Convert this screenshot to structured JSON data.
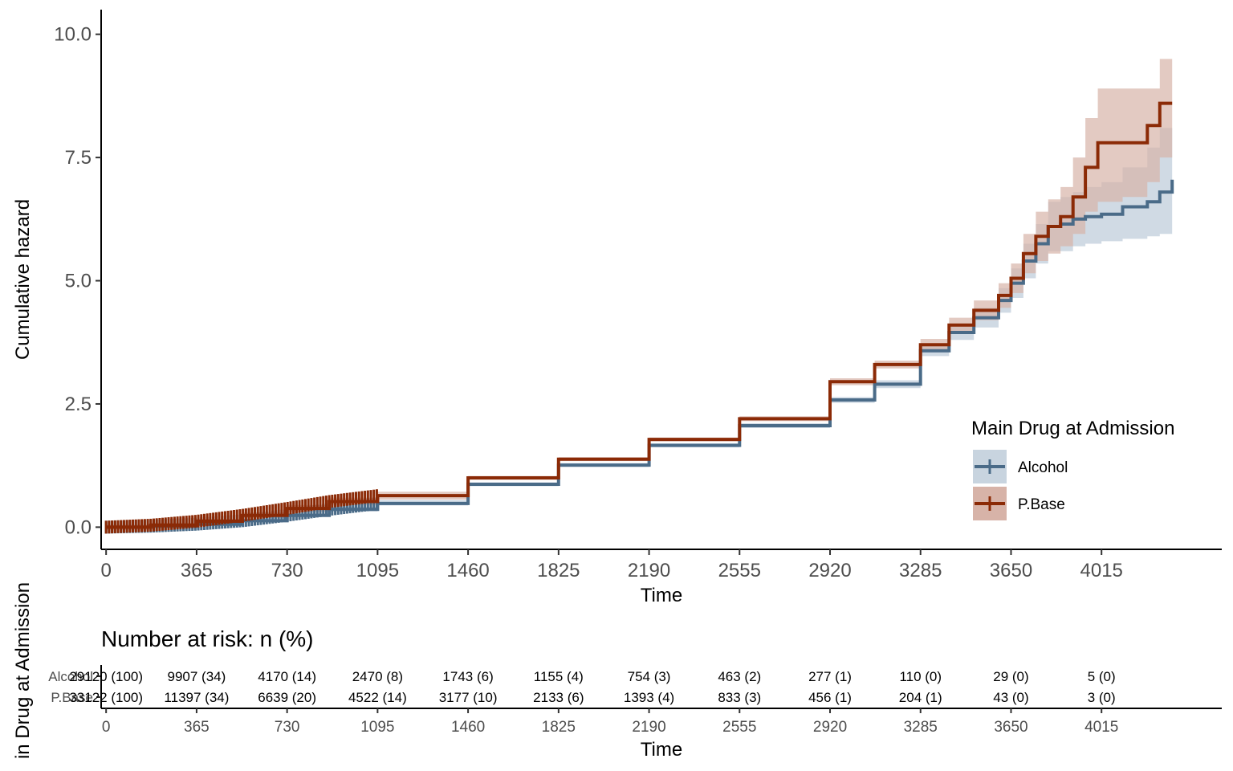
{
  "chart_data": [
    {
      "type": "line",
      "subtype": "step-cumulative-hazard-with-ci",
      "xlabel": "Time",
      "ylabel": "Cumulative hazard",
      "xlim": [
        -20,
        4500
      ],
      "ylim": [
        -0.45,
        10.5
      ],
      "x_ticks": [
        "0",
        "365",
        "730",
        "1095",
        "1460",
        "1825",
        "2190",
        "2555",
        "2920",
        "3285",
        "3650",
        "4015"
      ],
      "x_tick_values": [
        0,
        365,
        730,
        1095,
        1460,
        1825,
        2190,
        2555,
        2920,
        3285,
        3650,
        4015
      ],
      "y_ticks": [
        "0.0",
        "2.5",
        "5.0",
        "7.5",
        "10.0"
      ],
      "y_tick_values": [
        0,
        2.5,
        5,
        7.5,
        10
      ],
      "grid": false,
      "legend": {
        "title": "Main Drug at Admission",
        "position": "right",
        "entries": [
          "Alcohol",
          "P.Base"
        ]
      },
      "series": [
        {
          "name": "Alcohol",
          "color": "#4a6b88",
          "ci_color": "#c8d4df",
          "x": [
            0,
            180,
            365,
            550,
            730,
            900,
            1095,
            1460,
            1825,
            2190,
            2555,
            2920,
            3100,
            3285,
            3400,
            3500,
            3600,
            3650,
            3700,
            3750,
            3800,
            3850,
            3900,
            3950,
            4015,
            4100,
            4200,
            4250,
            4300
          ],
          "y": [
            0.0,
            0.02,
            0.06,
            0.13,
            0.24,
            0.36,
            0.48,
            0.87,
            1.26,
            1.66,
            2.06,
            2.58,
            2.9,
            3.58,
            3.95,
            4.25,
            4.6,
            4.95,
            5.4,
            5.75,
            6.1,
            6.15,
            6.25,
            6.3,
            6.35,
            6.5,
            6.6,
            6.8,
            7.05
          ],
          "ci_lower": [
            0.0,
            0.01,
            0.05,
            0.11,
            0.21,
            0.32,
            0.44,
            0.83,
            1.22,
            1.62,
            2.01,
            2.52,
            2.82,
            3.47,
            3.8,
            4.05,
            4.35,
            4.65,
            5.05,
            5.35,
            5.6,
            5.6,
            5.7,
            5.75,
            5.8,
            5.85,
            5.9,
            5.95,
            6.05
          ],
          "ci_upper": [
            0.0,
            0.03,
            0.08,
            0.15,
            0.28,
            0.42,
            0.55,
            0.91,
            1.3,
            1.7,
            2.11,
            2.64,
            2.98,
            3.69,
            4.1,
            4.45,
            4.85,
            5.25,
            5.75,
            6.15,
            6.6,
            6.7,
            6.8,
            6.9,
            7.0,
            7.3,
            7.7,
            8.1,
            8.2
          ]
        },
        {
          "name": "P.Base",
          "color": "#8b2a06",
          "ci_color": "#d7b3a8",
          "x": [
            0,
            180,
            365,
            550,
            730,
            900,
            1095,
            1460,
            1825,
            2190,
            2555,
            2920,
            3100,
            3285,
            3400,
            3500,
            3600,
            3650,
            3700,
            3750,
            3800,
            3850,
            3900,
            3950,
            4000,
            4100,
            4200,
            4250,
            4300
          ],
          "y": [
            0.0,
            0.04,
            0.12,
            0.24,
            0.38,
            0.52,
            0.64,
            1.0,
            1.38,
            1.78,
            2.2,
            2.95,
            3.3,
            3.7,
            4.1,
            4.4,
            4.7,
            5.05,
            5.55,
            5.9,
            6.1,
            6.3,
            6.7,
            7.3,
            7.8,
            7.8,
            8.15,
            8.6,
            8.6
          ],
          "ci_lower": [
            -0.05,
            -0.01,
            0.07,
            0.18,
            0.31,
            0.44,
            0.56,
            0.96,
            1.34,
            1.74,
            2.15,
            2.88,
            3.22,
            3.58,
            3.95,
            4.2,
            4.45,
            4.75,
            5.15,
            5.4,
            5.55,
            5.7,
            5.95,
            6.4,
            6.6,
            6.7,
            7.0,
            7.5,
            7.6
          ],
          "ci_upper": [
            0.05,
            0.09,
            0.17,
            0.3,
            0.45,
            0.6,
            0.72,
            1.04,
            1.42,
            1.82,
            2.25,
            3.02,
            3.38,
            3.82,
            4.25,
            4.6,
            4.95,
            5.35,
            5.95,
            6.4,
            6.65,
            6.9,
            7.5,
            8.3,
            8.9,
            8.9,
            8.9,
            9.5,
            9.5
          ]
        }
      ]
    },
    {
      "type": "table",
      "title": "Number at risk: n (%)",
      "xlabel": "Time",
      "ylabel": "in Drug at Admission",
      "x_ticks": [
        "0",
        "365",
        "730",
        "1095",
        "1460",
        "1825",
        "2190",
        "2555",
        "2920",
        "3285",
        "3650",
        "4015"
      ],
      "rows": [
        {
          "group": "Alcohol",
          "values": [
            "29120 (100)",
            "9907 (34)",
            "4170 (14)",
            "2470 (8)",
            "1743 (6)",
            "1155 (4)",
            "754 (3)",
            "463 (2)",
            "277 (1)",
            "110 (0)",
            "29 (0)",
            "5 (0)"
          ]
        },
        {
          "group": "P.Base",
          "values": [
            "33122 (100)",
            "11397 (34)",
            "6639 (20)",
            "4522 (14)",
            "3177 (10)",
            "2133 (6)",
            "1393 (4)",
            "833 (3)",
            "456 (1)",
            "204 (1)",
            "43 (0)",
            "3 (0)"
          ]
        }
      ]
    }
  ]
}
